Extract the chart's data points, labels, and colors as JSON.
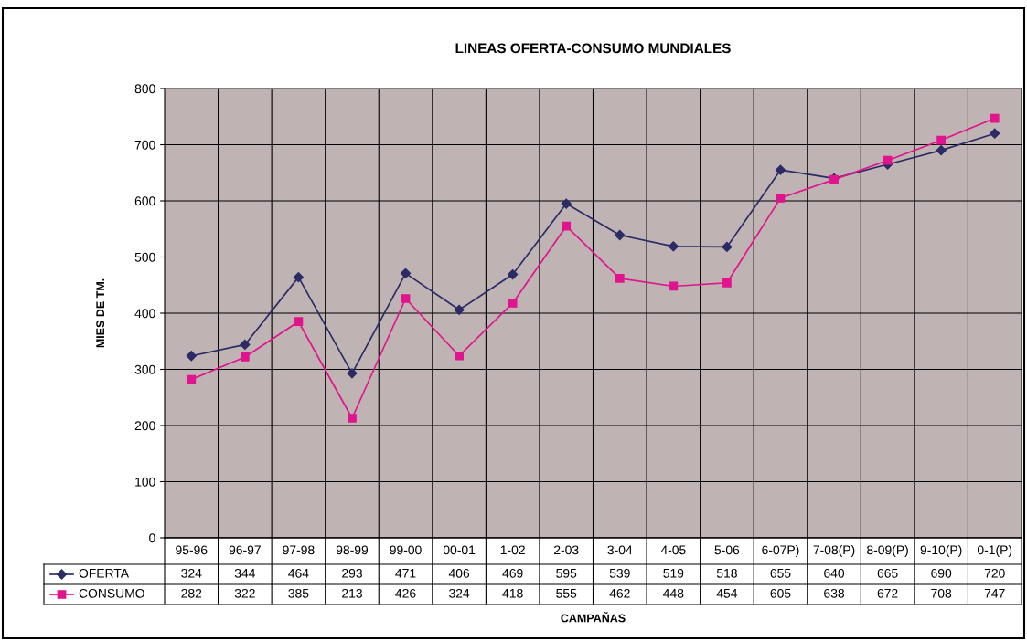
{
  "chart_data": {
    "type": "line",
    "title": "LINEAS OFERTA-CONSUMO MUNDIALES",
    "xlabel": "CAMPAÑAS",
    "ylabel": "MIES DE TM.",
    "categories": [
      "95-96",
      "96-97",
      "97-98",
      "98-99",
      "99-00",
      "00-01",
      "1-02",
      "2-03",
      "3-04",
      "4-05",
      "5-06",
      "6-07P)",
      "7-08(P)",
      "8-09(P)",
      "9-10(P)",
      "0-1(P)"
    ],
    "series": [
      {
        "name": "OFERTA",
        "color": "#2b2b66",
        "marker": "diamond",
        "values": [
          324,
          344,
          464,
          293,
          471,
          406,
          469,
          595,
          539,
          519,
          518,
          655,
          640,
          665,
          690,
          720
        ]
      },
      {
        "name": "CONSUMO",
        "color": "#e0148c",
        "marker": "square",
        "values": [
          282,
          322,
          385,
          213,
          426,
          324,
          418,
          555,
          462,
          448,
          454,
          605,
          638,
          672,
          708,
          747
        ]
      }
    ],
    "ylim": [
      0,
      800
    ],
    "yticks": [
      0,
      100,
      200,
      300,
      400,
      500,
      600,
      700,
      800
    ],
    "grid": true,
    "legend": "bottom left",
    "data_labels": true,
    "line_style": "solid"
  }
}
